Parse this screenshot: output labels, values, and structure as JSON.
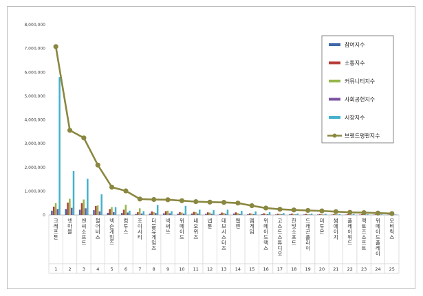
{
  "chart_data": {
    "type": "bar",
    "title": "",
    "xlabel": "",
    "ylabel": "",
    "ylim": [
      0,
      8000000
    ],
    "yticks": [
      0,
      1000000,
      2000000,
      3000000,
      4000000,
      5000000,
      6000000,
      7000000,
      8000000
    ],
    "ytick_labels": [
      "0",
      "1,000,000",
      "2,000,000",
      "3,000,000",
      "4,000,000",
      "5,000,000",
      "6,000,000",
      "7,000,000",
      "8,000,000"
    ],
    "grid": false,
    "legend_position": "top-right",
    "categories": [
      "크래프톤",
      "넷마블",
      "엔씨소프트",
      "펄어비스",
      "넥슨게임즈",
      "컴투스",
      "조이시티",
      "더블유게임즈",
      "넥써쓰",
      "위메이드",
      "네오위즈",
      "넵튠",
      "데브시스터즈",
      "웹젠",
      "엠게임",
      "위메이드맥스",
      "고스트스튜디오",
      "한빛소프트",
      "드래곤플라이",
      "미투온",
      "썸에이지",
      "플레이위드",
      "액토즈소프트",
      "위메이드플레이",
      "모비릭스"
    ],
    "ranks": [
      "1",
      "2",
      "3",
      "4",
      "5",
      "6",
      "7",
      "8",
      "9",
      "10",
      "11",
      "12",
      "13",
      "14",
      "15",
      "16",
      "17",
      "18",
      "19",
      "20",
      "21",
      "22",
      "23",
      "24",
      "25"
    ],
    "series": [
      {
        "name": "참여지수",
        "kind": "bar",
        "color": "#3e68a8",
        "values": [
          180000,
          250000,
          220000,
          200000,
          90000,
          80000,
          40000,
          60000,
          70000,
          50000,
          60000,
          50000,
          40000,
          60000,
          30000,
          30000,
          20000,
          30000,
          20000,
          20000,
          15000,
          15000,
          15000,
          15000,
          10000
        ]
      },
      {
        "name": "소통지수",
        "kind": "bar",
        "color": "#b73c38",
        "values": [
          350000,
          520000,
          500000,
          380000,
          250000,
          220000,
          120000,
          150000,
          160000,
          120000,
          130000,
          110000,
          100000,
          110000,
          70000,
          70000,
          50000,
          60000,
          50000,
          40000,
          35000,
          30000,
          30000,
          30000,
          20000
        ]
      },
      {
        "name": "커뮤니티지수",
        "kind": "bar",
        "color": "#95b64a",
        "values": [
          500000,
          680000,
          650000,
          400000,
          330000,
          430000,
          280000,
          120000,
          180000,
          100000,
          120000,
          100000,
          90000,
          80000,
          60000,
          50000,
          50000,
          40000,
          40000,
          30000,
          30000,
          25000,
          25000,
          20000,
          20000
        ]
      },
      {
        "name": "사회공헌지수",
        "kind": "bar",
        "color": "#7a53a0",
        "values": [
          250000,
          300000,
          280000,
          150000,
          120000,
          100000,
          60000,
          80000,
          70000,
          60000,
          60000,
          50000,
          50000,
          40000,
          30000,
          30000,
          25000,
          20000,
          20000,
          15000,
          15000,
          10000,
          10000,
          10000,
          10000
        ]
      },
      {
        "name": "시장지수",
        "kind": "bar",
        "color": "#43b1cc",
        "values": [
          5800000,
          1850000,
          1520000,
          870000,
          330000,
          180000,
          160000,
          420000,
          160000,
          380000,
          220000,
          200000,
          220000,
          170000,
          150000,
          120000,
          80000,
          60000,
          60000,
          50000,
          40000,
          40000,
          30000,
          25000,
          20000
        ]
      },
      {
        "name": "브랜드평판지수",
        "kind": "line",
        "color": "#8a8740",
        "values": [
          7080000,
          3560000,
          3240000,
          2100000,
          1170000,
          1010000,
          670000,
          650000,
          640000,
          600000,
          560000,
          540000,
          530000,
          500000,
          390000,
          290000,
          240000,
          210000,
          190000,
          170000,
          140000,
          110000,
          100000,
          80000,
          60000
        ]
      }
    ]
  }
}
